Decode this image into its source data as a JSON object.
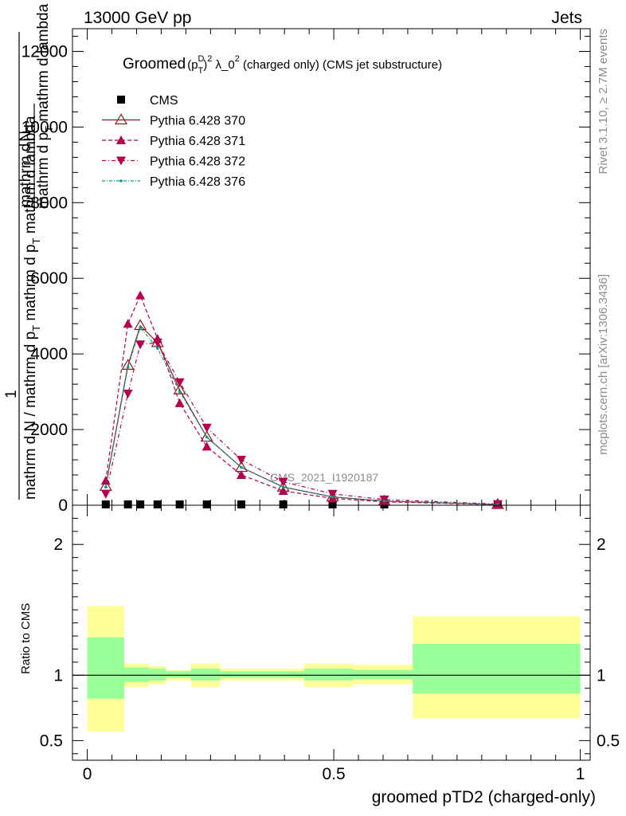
{
  "header": {
    "left": "13000 GeV pp",
    "right": "Jets"
  },
  "side_labels": {
    "rivet": "Rivet 3.1.10, ≥ 2.7M events",
    "mcplots": "mcplots.cern.ch [arXiv:1306.3436]"
  },
  "title": {
    "prefix": "Groomed",
    "p": "(p",
    "sup_d": "D",
    "sub_t": "T",
    "close": ")",
    "sup_2": "2",
    "lambda": " λ_0",
    "sup_2b": "2",
    "rest": "  (charged only) (CMS jet substructure)"
  },
  "watermark": "CMS_2021_I1920187",
  "upper_ylabel": {
    "one": "1",
    "num": "mathrm d",
    "num_N": "N",
    "den": "mathrm d N / mathrm d p",
    "den_sub": "T",
    "den2": " mathrm d p",
    "den2_sub": "T",
    "den3": " mathrm d lambda",
    "frac_num": "mathrm d",
    "frac_num_N": "N",
    "frac_den": "mathrm d p",
    "frac_den_sub": "T",
    "frac_den2": " mathrm d lambda"
  },
  "legend": [
    {
      "label": "CMS",
      "marker": "square-filled",
      "color": "#000000"
    },
    {
      "label": "Pythia 6.428 370",
      "marker": "triangle-up-open",
      "color": "#8b1a1a"
    },
    {
      "label": "Pythia 6.428 371",
      "marker": "triangle-up-filled",
      "color": "#b4004e"
    },
    {
      "label": "Pythia 6.428 372",
      "marker": "triangle-down-filled",
      "color": "#b4004e"
    },
    {
      "label": "Pythia 6.428 376",
      "marker": "dot",
      "color": "#00a088"
    }
  ],
  "colors": {
    "p370": "#8b1a1a",
    "p371": "#b4004e",
    "p372": "#b4004e",
    "p376": "#00a088",
    "band_inner": "#99ff99",
    "band_outer": "#ffff99"
  },
  "chart_data": [
    {
      "type": "line",
      "title": "Groomed (p_T^D)^2 λ_0^2 (charged only) (CMS jet substructure)",
      "xlabel": "groomed pTD2 (charged-only)",
      "xlim": [
        -0.03,
        1.02
      ],
      "ylim": [
        0,
        12600
      ],
      "yticks": [
        0,
        2000,
        4000,
        6000,
        8000,
        10000,
        12000
      ],
      "ytick_labels": [
        "0",
        "2000",
        "4000",
        "6000",
        "8000",
        "10000",
        "12000"
      ],
      "x": [
        0.0375,
        0.0825,
        0.1075,
        0.1425,
        0.1875,
        0.2425,
        0.3125,
        0.3975,
        0.4975,
        0.6025,
        0.8325
      ],
      "series": [
        {
          "name": "CMS",
          "values": [
            0,
            0,
            0,
            0,
            0,
            0,
            0,
            0,
            0,
            0,
            0
          ]
        },
        {
          "name": "Pythia 6.428 370",
          "values": [
            500,
            3700,
            4750,
            4300,
            3050,
            1800,
            1000,
            480,
            220,
            110,
            20
          ]
        },
        {
          "name": "Pythia 6.428 371",
          "values": [
            650,
            4800,
            5550,
            4400,
            2700,
            1550,
            800,
            380,
            180,
            90,
            15
          ]
        },
        {
          "name": "Pythia 6.428 372",
          "values": [
            300,
            2950,
            4250,
            4300,
            3250,
            2050,
            1200,
            620,
            300,
            150,
            30
          ]
        },
        {
          "name": "Pythia 6.428 376",
          "values": [
            480,
            3650,
            4700,
            4150,
            3000,
            1800,
            1000,
            480,
            220,
            110,
            20
          ]
        }
      ]
    },
    {
      "type": "area",
      "ylabel": "Ratio to CMS",
      "xlabel": "groomed pTD2 (charged-only)",
      "xlim": [
        -0.03,
        1.02
      ],
      "ylim": [
        0.35,
        2.3
      ],
      "yticks": [
        0.5,
        1,
        2
      ],
      "ytick_labels": [
        "0.5",
        "1",
        "2"
      ],
      "xticks": [
        0,
        0.5,
        1
      ],
      "xtick_labels": [
        "0",
        "0.5",
        "1"
      ],
      "bins": [
        {
          "x0": 0.0,
          "x1": 0.075,
          "inner": [
            0.82,
            1.29
          ],
          "outer": [
            0.57,
            1.53
          ]
        },
        {
          "x0": 0.075,
          "x1": 0.125,
          "inner": [
            0.95,
            1.06
          ],
          "outer": [
            0.91,
            1.09
          ]
        },
        {
          "x0": 0.125,
          "x1": 0.16,
          "inner": [
            0.96,
            1.05
          ],
          "outer": [
            0.93,
            1.07
          ]
        },
        {
          "x0": 0.16,
          "x1": 0.21,
          "inner": [
            0.98,
            1.03
          ],
          "outer": [
            0.96,
            1.04
          ]
        },
        {
          "x0": 0.21,
          "x1": 0.27,
          "inner": [
            0.96,
            1.05
          ],
          "outer": [
            0.91,
            1.09
          ]
        },
        {
          "x0": 0.27,
          "x1": 0.44,
          "inner": [
            0.98,
            1.03
          ],
          "outer": [
            0.96,
            1.05
          ]
        },
        {
          "x0": 0.44,
          "x1": 0.54,
          "inner": [
            0.96,
            1.05
          ],
          "outer": [
            0.91,
            1.09
          ]
        },
        {
          "x0": 0.54,
          "x1": 0.66,
          "inner": [
            0.97,
            1.04
          ],
          "outer": [
            0.93,
            1.08
          ]
        },
        {
          "x0": 0.66,
          "x1": 1.0,
          "inner": [
            0.86,
            1.24
          ],
          "outer": [
            0.67,
            1.45
          ]
        }
      ],
      "reference_line": 1
    }
  ]
}
